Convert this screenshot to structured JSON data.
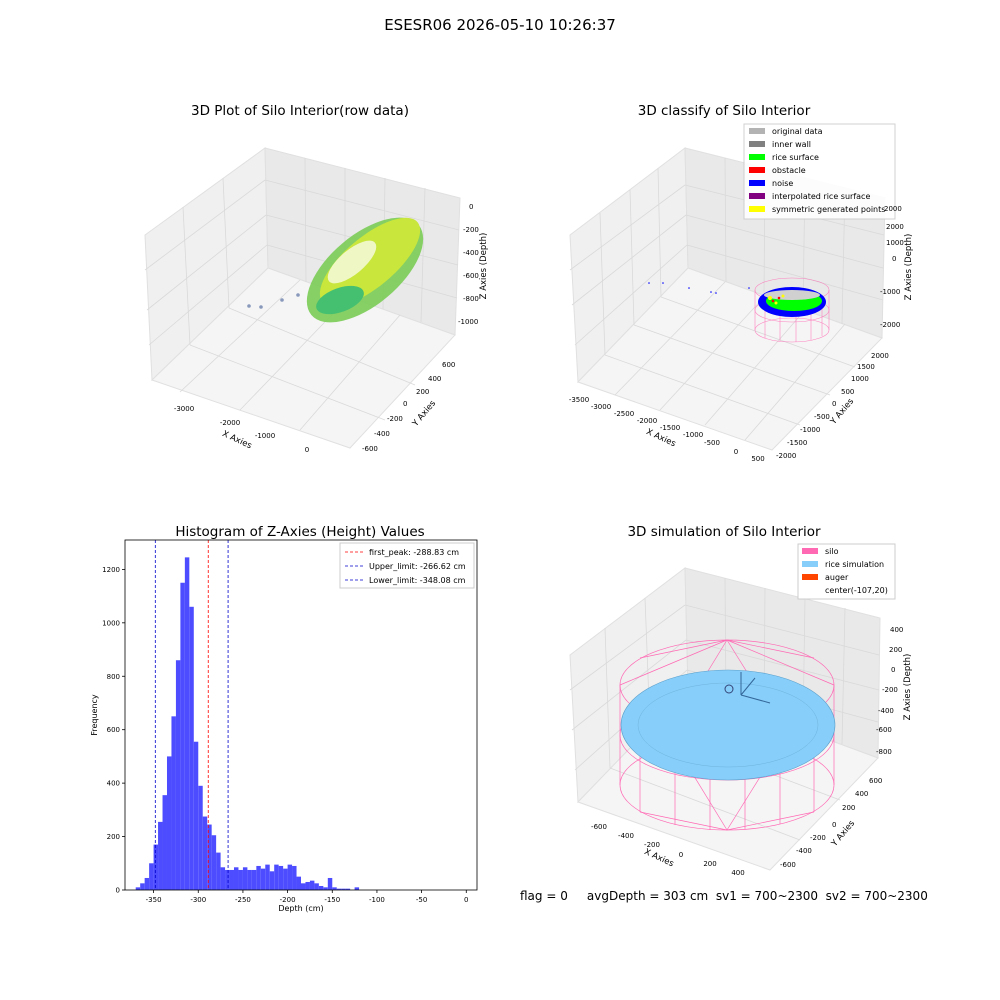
{
  "figure": {
    "suptitle": "ESESR06 2026-05-10 10:26:37",
    "footer": "flag = 0     avgDepth = 303 cm  sv1 = 700~2300  sv2 = 700~2300"
  },
  "colors": {
    "hist_bar": "#4d4dff",
    "first_peak_line": "#ff0000",
    "limit_line": "#0000cc",
    "original_data": "#b3b3b3",
    "inner_wall": "#808080",
    "rice_surface": "#00ff00",
    "obstacle": "#ff0000",
    "noise": "#0000ff",
    "interpolated_rice_surface": "#800080",
    "symmetric_generated_points": "#ffff00",
    "silo": "#ff69b4",
    "rice_simulation": "#87cefa",
    "auger": "#ff4500"
  },
  "chart_data": [
    {
      "type": "scatter",
      "projection": "3d",
      "title": "3D Plot of Silo Interior(row data)",
      "xlabel": "X Axies",
      "ylabel": "Y Axies",
      "zlabel": "Z Axies (Depth)",
      "x_ticks": [
        "-3000",
        "-2000",
        "-1000",
        "0"
      ],
      "y_ticks": [
        "-600",
        "-400",
        "-200",
        "0",
        "200",
        "400",
        "600"
      ],
      "z_ticks": [
        "0",
        "-200",
        "-400",
        "-600",
        "-800",
        "-1000"
      ],
      "grid": true
    },
    {
      "type": "scatter",
      "projection": "3d",
      "title": "3D classify of Silo Interior",
      "xlabel": "X Axies",
      "ylabel": "Y Axies",
      "zlabel": "Z Axies (Depth)",
      "x_ticks": [
        "-3500",
        "-3000",
        "-2500",
        "-2000",
        "-1500",
        "-1000",
        "-500",
        "0",
        "500"
      ],
      "y_ticks": [
        "-2000",
        "-1500",
        "-1000",
        "-500",
        "0",
        "500",
        "1000",
        "1500",
        "2000"
      ],
      "z_ticks": [
        "2000",
        "1000",
        "0",
        "-1000",
        "-2000"
      ],
      "legend": [
        "original data",
        "inner wall",
        "rice surface",
        "obstacle",
        "noise",
        "interpolated rice surface",
        "symmetric generated points"
      ],
      "legend_position": "top-right",
      "grid": true
    },
    {
      "type": "bar",
      "title": "Histogram of Z-Axies (Height) Values",
      "xlabel": "Depth (cm)",
      "ylabel": "Frequency",
      "xlim": [
        -382,
        12
      ],
      "ylim": [
        0,
        1310
      ],
      "x_ticks": [
        -350,
        -300,
        -250,
        -200,
        -150,
        -100,
        -50,
        0
      ],
      "y_ticks": [
        0,
        200,
        400,
        600,
        800,
        1000,
        1200
      ],
      "bin_start": -370,
      "bin_width": 5,
      "values": [
        10,
        25,
        45,
        100,
        170,
        255,
        355,
        500,
        650,
        860,
        1150,
        1245,
        1060,
        555,
        390,
        275,
        245,
        205,
        140,
        85,
        75,
        75,
        85,
        75,
        85,
        75,
        75,
        90,
        80,
        95,
        70,
        95,
        90,
        80,
        95,
        90,
        50,
        25,
        30,
        35,
        25,
        15,
        10,
        45,
        10,
        5,
        5,
        5,
        0,
        10
      ],
      "vlines": [
        {
          "label": "first_peak: -288.83 cm",
          "x": -288.83,
          "color": "#ff0000"
        },
        {
          "label": "Upper_limit: -266.62 cm",
          "x": -266.62,
          "color": "#0000cc"
        },
        {
          "label": "Lower_limit: -348.08 cm",
          "x": -348.08,
          "color": "#0000cc"
        }
      ],
      "legend_position": "top-right",
      "grid": false
    },
    {
      "type": "scatter",
      "projection": "3d",
      "title": "3D simulation of Silo Interior",
      "xlabel": "X Axies",
      "ylabel": "Y Axies",
      "zlabel": "Z Axies (Depth)",
      "x_ticks": [
        "-600",
        "-400",
        "-200",
        "0",
        "200",
        "400"
      ],
      "y_ticks": [
        "-600",
        "-400",
        "-200",
        "0",
        "200",
        "400",
        "600"
      ],
      "z_ticks": [
        "400",
        "200",
        "0",
        "-200",
        "-400",
        "-600",
        "-800"
      ],
      "legend": [
        "silo",
        "rice simulation",
        "auger",
        "center(-107,20)"
      ],
      "legend_position": "top-right",
      "grid": true
    }
  ]
}
